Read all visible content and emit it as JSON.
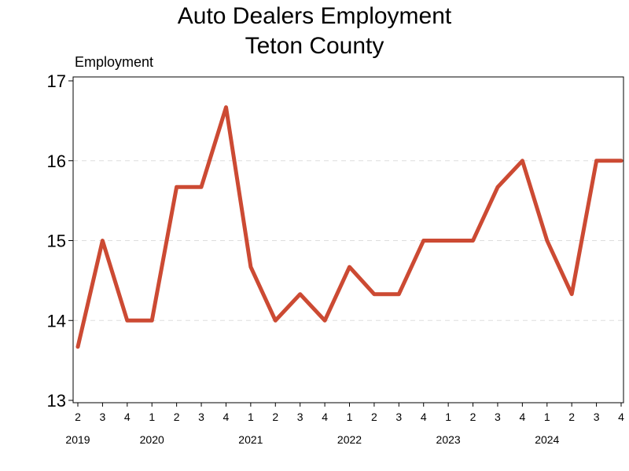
{
  "chart_data": {
    "type": "line",
    "title": "Auto Dealers Employment",
    "subtitle": "Teton County",
    "ylabel": "Employment",
    "xlabel": "",
    "ylim": [
      13,
      17
    ],
    "yticks": [
      13,
      14,
      15,
      16,
      17
    ],
    "grid": "horizontal-dashed",
    "line_color": "#cc4a33",
    "x_quarters": [
      "2",
      "3",
      "4",
      "1",
      "2",
      "3",
      "4",
      "1",
      "2",
      "3",
      "4",
      "1",
      "2",
      "3",
      "4",
      "1",
      "2",
      "3",
      "4",
      "1",
      "2",
      "3",
      "4"
    ],
    "year_labels": [
      {
        "label": "2019",
        "quarter_index": 0
      },
      {
        "label": "2020",
        "quarter_index": 3
      },
      {
        "label": "2021",
        "quarter_index": 7
      },
      {
        "label": "2022",
        "quarter_index": 11
      },
      {
        "label": "2023",
        "quarter_index": 15
      },
      {
        "label": "2024",
        "quarter_index": 19
      }
    ],
    "series": [
      {
        "values": [
          13.67,
          15.0,
          14.0,
          14.0,
          15.67,
          15.67,
          16.67,
          14.67,
          14.0,
          14.33,
          14.0,
          14.67,
          14.33,
          14.33,
          15.0,
          15.0,
          15.0,
          15.67,
          16.0,
          15.0,
          14.33,
          16.0,
          16.0
        ]
      }
    ]
  }
}
